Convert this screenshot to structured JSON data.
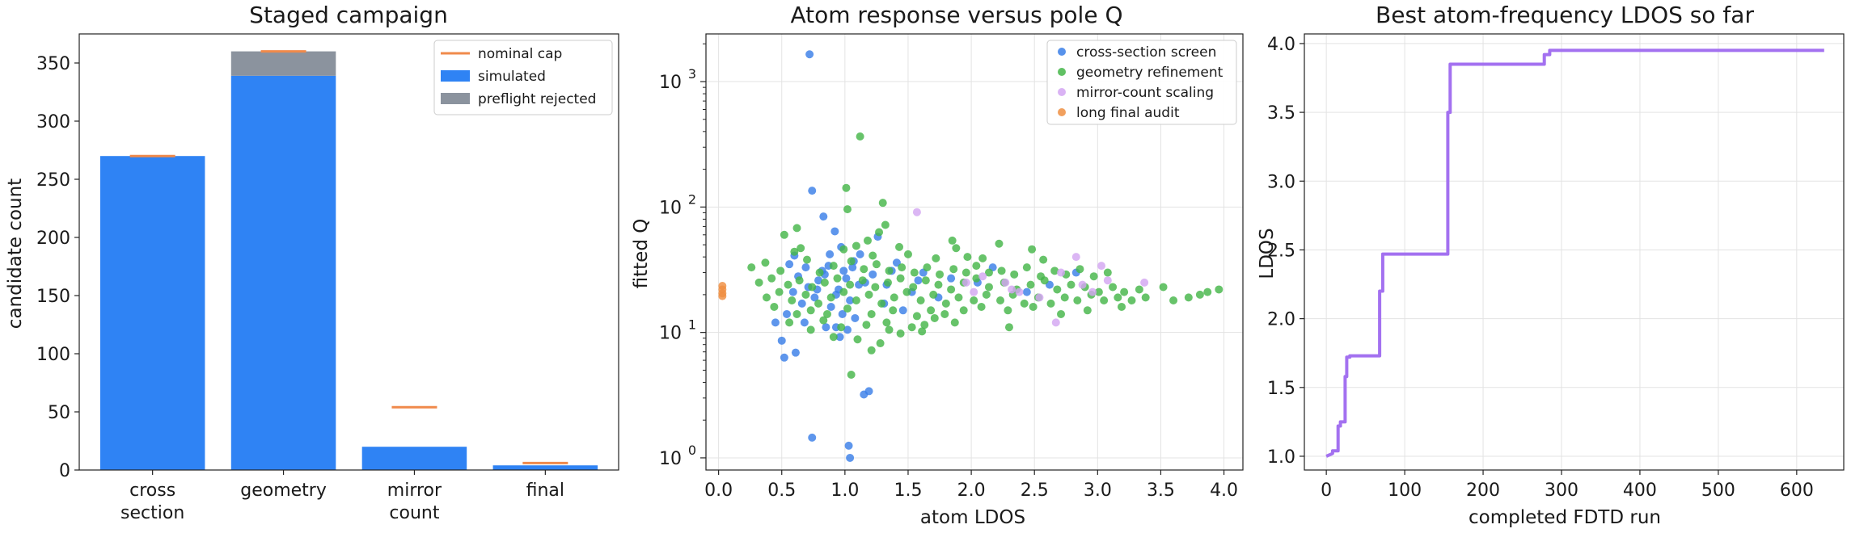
{
  "chart_data": [
    {
      "type": "bar",
      "title": "Staged campaign",
      "xlabel": "",
      "ylabel": "candidate count",
      "categories": [
        [
          "cross",
          "section"
        ],
        [
          "geometry"
        ],
        [
          "mirror",
          "count"
        ],
        [
          "final"
        ]
      ],
      "ylim": [
        0,
        375
      ],
      "yticks": [
        0,
        50,
        100,
        150,
        200,
        250,
        300,
        350
      ],
      "stacked": true,
      "series": [
        {
          "name": "simulated",
          "color": "#2f83f4",
          "values": [
            270,
            339,
            20,
            4
          ]
        },
        {
          "name": "preflight rejected",
          "color": "#8b939e",
          "values": [
            0,
            21,
            0,
            0
          ]
        }
      ],
      "markers": {
        "name": "nominal cap",
        "color": "#f08a4b",
        "values": [
          270,
          360,
          54,
          6
        ]
      },
      "legend": "top-right",
      "grid": false
    },
    {
      "type": "scatter",
      "title": "Atom response versus pole Q",
      "xlabel": "atom LDOS",
      "ylabel": "fitted Q",
      "xlim": [
        -0.1,
        4.15
      ],
      "ylim": [
        0.8,
        2400
      ],
      "yscale": "log",
      "xticks": [
        "0.0",
        "0.5",
        "1.0",
        "1.5",
        "2.0",
        "2.5",
        "3.0",
        "3.5",
        "4.0"
      ],
      "yticks": [
        {
          "base": "10",
          "exp": "0"
        },
        {
          "base": "10",
          "exp": "1"
        },
        {
          "base": "10",
          "exp": "2"
        },
        {
          "base": "10",
          "exp": "3"
        }
      ],
      "legend": "top-right",
      "grid": true,
      "series": [
        {
          "name": "cross-section screen",
          "color": "#3a7fe8",
          "points": [
            [
              0.72,
              1650
            ],
            [
              0.74,
              135
            ],
            [
              0.92,
              64
            ],
            [
              0.88,
              42
            ],
            [
              0.56,
              35
            ],
            [
              0.63,
              28
            ],
            [
              0.69,
              33
            ],
            [
              0.79,
              26
            ],
            [
              0.82,
              31
            ],
            [
              0.95,
              22
            ],
            [
              1.04,
              18
            ],
            [
              1.11,
              24
            ],
            [
              0.98,
              14
            ],
            [
              0.93,
              11
            ],
            [
              0.96,
              9.2
            ],
            [
              1.02,
              10.5
            ],
            [
              1.08,
              13
            ],
            [
              0.89,
              16
            ],
            [
              0.76,
              19
            ],
            [
              0.71,
              23
            ],
            [
              0.66,
              17
            ],
            [
              0.59,
              21
            ],
            [
              0.54,
              14
            ],
            [
              0.5,
              8.6
            ],
            [
              0.45,
              12
            ],
            [
              0.52,
              6.3
            ],
            [
              0.61,
              6.9
            ],
            [
              1.15,
              3.2
            ],
            [
              1.19,
              3.4
            ],
            [
              1.03,
              1.25
            ],
            [
              1.04,
              1.0
            ],
            [
              0.74,
              1.45
            ],
            [
              0.83,
              84
            ],
            [
              1.26,
              58
            ],
            [
              0.97,
              48
            ],
            [
              1.22,
              29
            ],
            [
              1.33,
              24
            ],
            [
              1.41,
              36
            ],
            [
              1.53,
              21
            ],
            [
              1.62,
              30
            ],
            [
              1.74,
              19
            ],
            [
              1.84,
              27
            ],
            [
              2.05,
              25
            ],
            [
              2.17,
              33
            ],
            [
              2.44,
              21
            ],
            [
              2.62,
              24
            ],
            [
              2.83,
              30
            ],
            [
              1.12,
              42
            ],
            [
              1.07,
              37
            ],
            [
              0.84,
              29
            ],
            [
              0.68,
              12
            ],
            [
              1.31,
              17
            ],
            [
              1.46,
              15
            ],
            [
              1.16,
              25
            ],
            [
              0.99,
              31
            ],
            [
              0.78,
              22
            ],
            [
              0.87,
              34
            ],
            [
              0.93,
              20
            ],
            [
              1.01,
              27
            ],
            [
              1.06,
              33
            ],
            [
              1.37,
              31
            ],
            [
              1.58,
              26
            ],
            [
              0.6,
              41
            ],
            [
              0.85,
              11
            ]
          ]
        },
        {
          "name": "geometry refinement",
          "color": "#45b649",
          "points": [
            [
              1.12,
              365
            ],
            [
              1.01,
              142
            ],
            [
              1.3,
              108
            ],
            [
              1.02,
              96
            ],
            [
              0.62,
              68
            ],
            [
              0.52,
              60
            ],
            [
              1.32,
              72
            ],
            [
              1.27,
              63
            ],
            [
              1.18,
              54
            ],
            [
              1.43,
              48
            ],
            [
              1.85,
              54
            ],
            [
              1.88,
              47
            ],
            [
              2.22,
              51
            ],
            [
              2.48,
              46
            ],
            [
              0.6,
              44
            ],
            [
              0.65,
              47
            ],
            [
              0.99,
              46
            ],
            [
              1.09,
              49
            ],
            [
              1.22,
              41
            ],
            [
              1.5,
              42
            ],
            [
              1.72,
              39
            ],
            [
              1.97,
              40
            ],
            [
              2.09,
              39
            ],
            [
              2.57,
              38
            ],
            [
              0.26,
              33
            ],
            [
              0.37,
              36
            ],
            [
              0.49,
              31
            ],
            [
              0.7,
              38
            ],
            [
              0.8,
              30
            ],
            [
              0.91,
              34
            ],
            [
              1.05,
              37
            ],
            [
              1.15,
              32
            ],
            [
              1.25,
              35
            ],
            [
              1.35,
              31
            ],
            [
              1.45,
              33
            ],
            [
              1.55,
              30
            ],
            [
              1.65,
              33
            ],
            [
              1.75,
              29
            ],
            [
              1.86,
              32
            ],
            [
              1.96,
              30
            ],
            [
              2.04,
              34
            ],
            [
              2.14,
              30
            ],
            [
              2.24,
              31
            ],
            [
              2.34,
              29
            ],
            [
              2.44,
              33
            ],
            [
              2.55,
              28
            ],
            [
              2.66,
              31
            ],
            [
              2.75,
              29
            ],
            [
              2.86,
              32
            ],
            [
              2.97,
              28
            ],
            [
              3.08,
              30
            ],
            [
              0.32,
              25
            ],
            [
              0.42,
              27
            ],
            [
              0.55,
              24
            ],
            [
              0.64,
              26
            ],
            [
              0.74,
              23
            ],
            [
              0.84,
              25
            ],
            [
              0.94,
              27
            ],
            [
              1.04,
              24
            ],
            [
              1.14,
              26
            ],
            [
              1.24,
              23
            ],
            [
              1.34,
              25
            ],
            [
              1.44,
              27
            ],
            [
              1.54,
              23
            ],
            [
              1.64,
              26
            ],
            [
              1.74,
              24
            ],
            [
              1.84,
              22
            ],
            [
              1.94,
              25
            ],
            [
              2.04,
              27
            ],
            [
              2.14,
              23
            ],
            [
              2.26,
              25
            ],
            [
              2.36,
              22
            ],
            [
              2.47,
              24
            ],
            [
              2.58,
              26
            ],
            [
              2.68,
              22
            ],
            [
              2.79,
              24
            ],
            [
              2.9,
              23
            ],
            [
              3.01,
              21
            ],
            [
              3.12,
              23
            ],
            [
              3.21,
              21
            ],
            [
              3.33,
              22
            ],
            [
              3.52,
              23
            ],
            [
              3.87,
              21
            ],
            [
              3.96,
              22
            ],
            [
              0.38,
              19
            ],
            [
              0.48,
              21
            ],
            [
              0.58,
              18
            ],
            [
              0.69,
              20
            ],
            [
              0.79,
              17
            ],
            [
              0.89,
              19
            ],
            [
              0.99,
              21
            ],
            [
              1.09,
              18
            ],
            [
              1.19,
              20
            ],
            [
              1.29,
              17
            ],
            [
              1.39,
              19
            ],
            [
              1.49,
              21
            ],
            [
              1.6,
              18
            ],
            [
              1.7,
              20
            ],
            [
              1.8,
              17
            ],
            [
              1.9,
              19
            ],
            [
              2.02,
              18
            ],
            [
              2.12,
              20
            ],
            [
              2.23,
              18
            ],
            [
              2.33,
              20
            ],
            [
              2.42,
              17
            ],
            [
              2.53,
              19
            ],
            [
              2.63,
              17
            ],
            [
              2.74,
              19
            ],
            [
              2.84,
              18
            ],
            [
              2.95,
              20
            ],
            [
              3.05,
              18
            ],
            [
              3.16,
              19
            ],
            [
              3.27,
              18
            ],
            [
              3.38,
              19
            ],
            [
              3.6,
              18
            ],
            [
              3.72,
              19
            ],
            [
              3.81,
              20
            ],
            [
              0.44,
              16
            ],
            [
              0.62,
              14
            ],
            [
              0.73,
              15
            ],
            [
              0.86,
              14
            ],
            [
              1.02,
              15.5
            ],
            [
              1.21,
              14
            ],
            [
              1.38,
              15
            ],
            [
              1.57,
              13.5
            ],
            [
              1.68,
              15
            ],
            [
              1.79,
              14
            ],
            [
              1.94,
              15
            ],
            [
              2.08,
              16
            ],
            [
              2.29,
              15
            ],
            [
              2.49,
              16
            ],
            [
              2.71,
              14
            ],
            [
              2.92,
              15
            ],
            [
              3.19,
              16
            ],
            [
              0.56,
              12
            ],
            [
              0.83,
              12.5
            ],
            [
              0.97,
              11
            ],
            [
              1.17,
              11.5
            ],
            [
              1.33,
              12
            ],
            [
              1.53,
              11
            ],
            [
              1.63,
              11.5
            ],
            [
              1.87,
              12
            ],
            [
              2.3,
              11
            ],
            [
              0.91,
              9.2
            ],
            [
              1.21,
              7.2
            ],
            [
              1.28,
              8.2
            ],
            [
              1.1,
              8.8
            ],
            [
              1.44,
              9.8
            ],
            [
              1.05,
              4.6
            ],
            [
              1.61,
              10.2
            ],
            [
              0.73,
              10.5
            ],
            [
              1.35,
              10.5
            ],
            [
              1.71,
              13
            ]
          ]
        },
        {
          "name": "mirror-count scaling",
          "color": "#d3a6f2",
          "points": [
            [
              1.57,
              91
            ],
            [
              2.83,
              40
            ],
            [
              2.88,
              24
            ],
            [
              3.03,
              34
            ],
            [
              3.08,
              26
            ],
            [
              2.32,
              22
            ],
            [
              2.02,
              21
            ],
            [
              2.27,
              25
            ],
            [
              2.71,
              30
            ],
            [
              2.67,
              12
            ],
            [
              2.54,
              19
            ],
            [
              2.96,
              21
            ],
            [
              3.37,
              25
            ],
            [
              2.38,
              21
            ],
            [
              1.96,
              25
            ],
            [
              2.09,
              28
            ]
          ]
        },
        {
          "name": "long final audit",
          "color": "#ef8f42",
          "points": [
            [
              0.03,
              23.5
            ],
            [
              0.03,
              22
            ],
            [
              0.03,
              20.5
            ],
            [
              0.03,
              19.5
            ]
          ]
        }
      ]
    },
    {
      "type": "line",
      "title": "Best atom-frequency LDOS so far",
      "xlabel": "completed FDTD run",
      "ylabel": "LDOS",
      "xlim": [
        -28,
        660
      ],
      "ylim": [
        0.9,
        4.07
      ],
      "xticks": [
        0,
        100,
        200,
        300,
        400,
        500,
        600
      ],
      "yticks": [
        "1.0",
        "1.5",
        "2.0",
        "2.5",
        "3.0",
        "3.5",
        "4.0"
      ],
      "grid": true,
      "series": [
        {
          "color": "#a371f0",
          "x": [
            0,
            8,
            8,
            15,
            15,
            18,
            18,
            24,
            24,
            26,
            26,
            30,
            30,
            68,
            68,
            72,
            72,
            155,
            155,
            158,
            158,
            278,
            278,
            285,
            285,
            635
          ],
          "y": [
            1.0,
            1.02,
            1.04,
            1.04,
            1.22,
            1.22,
            1.25,
            1.25,
            1.58,
            1.58,
            1.72,
            1.72,
            1.73,
            1.73,
            2.2,
            2.2,
            2.47,
            2.47,
            3.5,
            3.5,
            3.85,
            3.85,
            3.92,
            3.92,
            3.95,
            3.95
          ]
        }
      ]
    }
  ]
}
